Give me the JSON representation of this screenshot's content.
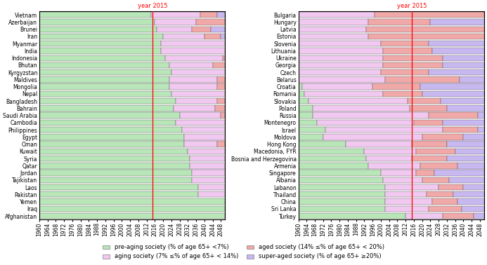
{
  "chart_data": [
    {
      "type": "bar",
      "orientation": "horizontal",
      "stacked": true,
      "legend": "lower center",
      "categories": [
        "Vietnam",
        "Azerbaijan",
        "Brunei",
        "Iran",
        "Myanmar",
        "India",
        "Indonesia",
        "Bhutan",
        "Kyrgyzstan",
        "Maldives",
        "Mongolia",
        "Nepal",
        "Bangladesh",
        "Bahrain",
        "Saudi Arabia",
        "Cambodia",
        "Philippines",
        "Egypt",
        "Oman",
        "Kuwait",
        "Syria",
        "Qatar",
        "Jordan",
        "Tajikistan",
        "Laos",
        "Pakistan",
        "Yemen",
        "Iraq",
        "Afghanistan"
      ],
      "xlim": [
        1960,
        2050
      ],
      "xticks": [
        1960,
        1964,
        1968,
        1972,
        1976,
        1980,
        1984,
        1988,
        1992,
        1996,
        2000,
        2004,
        2008,
        2012,
        2016,
        2020,
        2024,
        2028,
        2032,
        2036,
        2040,
        2044,
        2048
      ],
      "annotations": [
        {
          "text": "year 2015",
          "x": 2015,
          "color": "red"
        }
      ],
      "series": [
        {
          "name": "pre-aging society (% of age 65+ <7%)",
          "color": "#b8e6b8",
          "values": [
            [
              1960,
              2014
            ],
            [
              1960,
              2016
            ],
            [
              1960,
              2017
            ],
            [
              1960,
              2020
            ],
            [
              1960,
              2019
            ],
            [
              1960,
              2019
            ],
            [
              1960,
              2021
            ],
            [
              1960,
              2023
            ],
            [
              1960,
              2024
            ],
            [
              1960,
              2023
            ],
            [
              1960,
              2023
            ],
            [
              1960,
              2024
            ],
            [
              1960,
              2026
            ],
            [
              1960,
              2025
            ],
            [
              1960,
              2028
            ],
            [
              1960,
              2026
            ],
            [
              1960,
              2029
            ],
            [
              1960,
              2030
            ],
            [
              1960,
              2030
            ],
            [
              1960,
              2032
            ],
            [
              1960,
              2033
            ],
            [
              1960,
              2033
            ],
            [
              1960,
              2034
            ],
            [
              1960,
              2034
            ],
            [
              1960,
              2037
            ],
            [
              1960,
              2037
            ],
            [
              1960,
              2050
            ],
            [
              1960,
              2050
            ],
            [
              1960,
              2050
            ]
          ]
        },
        {
          "name": "aging society (7% ≤% of age 65+ < 14%)",
          "color": "#f0c8f0",
          "values": [
            [
              2014,
              2038
            ],
            [
              2016,
              2036
            ],
            [
              2017,
              2034
            ],
            [
              2020,
              2040
            ],
            [
              2019,
              2050
            ],
            [
              2019,
              2050
            ],
            [
              2021,
              2049
            ],
            [
              2023,
              2044
            ],
            [
              2024,
              2050
            ],
            [
              2023,
              2046
            ],
            [
              2023,
              2046
            ],
            [
              2024,
              2050
            ],
            [
              2026,
              2046
            ],
            [
              2025,
              2045
            ],
            [
              2028,
              2048
            ],
            [
              2026,
              2050
            ],
            [
              2029,
              2050
            ],
            [
              2030,
              2050
            ],
            [
              2030,
              2046
            ],
            [
              2032,
              2050
            ],
            [
              2033,
              2050
            ],
            [
              2033,
              2050
            ],
            [
              2034,
              2050
            ],
            [
              2034,
              2050
            ],
            [
              2037,
              2050
            ],
            [
              2037,
              2050
            ],
            null,
            null,
            null
          ]
        },
        {
          "name": "aged society (14% ≤% of age 65+ < 20%)",
          "color": "#f0a8a8",
          "values": [
            [
              2038,
              2046
            ],
            [
              2036,
              2050
            ],
            [
              2034,
              2043
            ],
            [
              2040,
              2048
            ],
            null,
            null,
            [
              2049,
              2050
            ],
            [
              2044,
              2050
            ],
            null,
            [
              2046,
              2050
            ],
            [
              2046,
              2050
            ],
            null,
            [
              2046,
              2050
            ],
            [
              2045,
              2050
            ],
            [
              2048,
              2050
            ],
            null,
            null,
            null,
            [
              2046,
              2050
            ],
            null,
            null,
            null,
            null,
            null,
            null,
            null,
            null,
            null,
            null
          ]
        },
        {
          "name": "super-aged society (% of age 65+ ≥20%)",
          "color": "#c8b8f0",
          "values": [
            [
              2046,
              2050
            ],
            null,
            [
              2043,
              2050
            ],
            [
              2048,
              2050
            ],
            null,
            null,
            null,
            null,
            null,
            null,
            null,
            null,
            null,
            null,
            null,
            null,
            null,
            null,
            null,
            null,
            null,
            null,
            null,
            null,
            null,
            null,
            null,
            null,
            null
          ]
        }
      ]
    },
    {
      "type": "bar",
      "orientation": "horizontal",
      "stacked": true,
      "legend": "lower center",
      "categories": [
        "Bulgaria",
        "Hungary",
        "Latvia",
        "Estonia",
        "Slovenia",
        "Lithuania",
        "Ukraine",
        "Georgia",
        "Czech",
        "Belarus",
        "Croatia",
        "Romania",
        "Slovakia",
        "Poland",
        "Russia",
        "Montenegro",
        "Israel",
        "Moldova",
        "Hong Kong",
        "Macedonia, FYR",
        "Bosnia and Herzegovina",
        "Armenia",
        "Singapore",
        "Albania",
        "Lebanon",
        "Thailand",
        "China",
        "Sri Lanka",
        "Turkey"
      ],
      "xlim": [
        1960,
        2050
      ],
      "xticks": [
        1960,
        1964,
        1968,
        1972,
        1976,
        1980,
        1984,
        1988,
        1992,
        1996,
        2000,
        2004,
        2008,
        2012,
        2016,
        2020,
        2024,
        2028,
        2032,
        2036,
        2040,
        2044,
        2048
      ],
      "annotations": [
        {
          "text": "year 2015",
          "x": 2015,
          "color": "red"
        }
      ],
      "series": [
        {
          "name": "pre-aging society (% of age 65+ <7%)",
          "color": "#b8e6b8",
          "values": [
            null,
            null,
            null,
            null,
            null,
            null,
            null,
            null,
            null,
            null,
            [
              1960,
              1962
            ],
            [
              1960,
              1963
            ],
            [
              1960,
              1965
            ],
            [
              1960,
              1967
            ],
            [
              1960,
              1967
            ],
            [
              1960,
              1969
            ],
            [
              1960,
              1973
            ],
            [
              1960,
              1972
            ],
            [
              1960,
              1983
            ],
            [
              1960,
              1992
            ],
            [
              1960,
              1993
            ],
            [
              1960,
              1994
            ],
            [
              1960,
              2000
            ],
            [
              1960,
              2001
            ],
            [
              1960,
              2002
            ],
            [
              1960,
              2002
            ],
            [
              1960,
              2002
            ],
            [
              1960,
              2002
            ],
            [
              1960,
              2012
            ]
          ]
        },
        {
          "name": "aging society (7% ≤% of age 65+ < 14%)",
          "color": "#f0c8f0",
          "values": [
            [
              1960,
              1997
            ],
            [
              1960,
              1994
            ],
            [
              1960,
              1993
            ],
            [
              1960,
              1994
            ],
            [
              1960,
              2000
            ],
            [
              1960,
              2001
            ],
            [
              1960,
              2001
            ],
            [
              1960,
              2001
            ],
            [
              1960,
              2000
            ],
            [
              1960,
              2002
            ],
            [
              1962,
              1996
            ],
            [
              1963,
              2001
            ],
            [
              1965,
              2013
            ],
            [
              1967,
              2014
            ],
            [
              1967,
              2023
            ],
            [
              1969,
              2016
            ],
            [
              1973,
              2030
            ],
            [
              1972,
              2020
            ],
            [
              1983,
              2015
            ],
            [
              1992,
              2017
            ],
            [
              1993,
              2015
            ],
            [
              1994,
              2019
            ],
            [
              2000,
              2017
            ],
            [
              2001,
              2020
            ],
            [
              2002,
              2028
            ],
            [
              2002,
              2022
            ],
            [
              2002,
              2025
            ],
            [
              2002,
              2023
            ],
            [
              2012,
              2030
            ]
          ]
        },
        {
          "name": "aged society (14% ≤% of age 65+ < 20%)",
          "color": "#f0a8a8",
          "values": [
            [
              1997,
              2050
            ],
            [
              1994,
              2024
            ],
            [
              1993,
              2050
            ],
            [
              1994,
              2050
            ],
            [
              2000,
              2023
            ],
            [
              2001,
              2025
            ],
            [
              2001,
              2030
            ],
            [
              2001,
              2030
            ],
            [
              2000,
              2023
            ],
            [
              2002,
              2038
            ],
            [
              1996,
              2019
            ],
            [
              2001,
              2020
            ],
            [
              2013,
              2029
            ],
            [
              2014,
              2032
            ],
            [
              2023,
              2047
            ],
            [
              2016,
              2030
            ],
            [
              2030,
              2047
            ],
            [
              2020,
              2040
            ],
            [
              2015,
              2032
            ],
            [
              2017,
              2036
            ],
            [
              2015,
              2032
            ],
            [
              2019,
              2037
            ],
            [
              2017,
              2026
            ],
            [
              2020,
              2033
            ],
            [
              2028,
              2040
            ],
            [
              2022,
              2035
            ],
            [
              2025,
              2037
            ],
            [
              2023,
              2039
            ],
            [
              2030,
              2045
            ]
          ]
        },
        {
          "name": "super-aged society (% of age 65+ ≥20%)",
          "color": "#c8b8f0",
          "values": [
            null,
            [
              2024,
              2050
            ],
            null,
            null,
            [
              2023,
              2050
            ],
            [
              2025,
              2050
            ],
            [
              2030,
              2050
            ],
            [
              2030,
              2050
            ],
            [
              2023,
              2050
            ],
            [
              2038,
              2050
            ],
            [
              2019,
              2050
            ],
            [
              2020,
              2050
            ],
            [
              2029,
              2050
            ],
            [
              2032,
              2050
            ],
            [
              2047,
              2050
            ],
            [
              2030,
              2050
            ],
            [
              2047,
              2050
            ],
            [
              2040,
              2050
            ],
            [
              2032,
              2050
            ],
            [
              2036,
              2050
            ],
            [
              2032,
              2050
            ],
            [
              2037,
              2050
            ],
            [
              2026,
              2050
            ],
            [
              2033,
              2050
            ],
            [
              2040,
              2050
            ],
            [
              2035,
              2050
            ],
            [
              2037,
              2050
            ],
            [
              2039,
              2050
            ],
            [
              2045,
              2050
            ]
          ]
        }
      ]
    }
  ]
}
